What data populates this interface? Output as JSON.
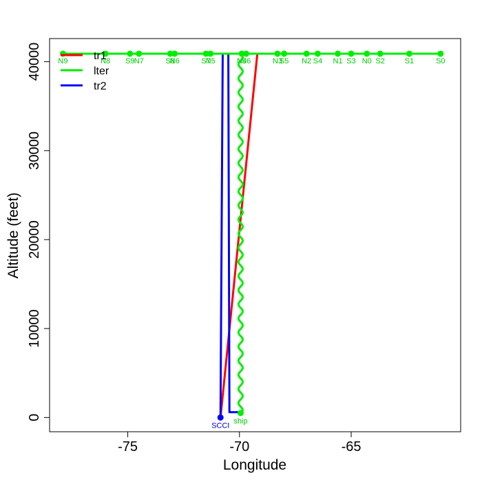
{
  "chart_data": {
    "type": "line",
    "xlabel": "Longitude",
    "ylabel": "Altitude (feet)",
    "xlim": [
      -78.5,
      -60.1
    ],
    "ylim": [
      -1600,
      42600
    ],
    "x_ticks": [
      -75,
      -70,
      -65
    ],
    "x_tick_labels": [
      "-75",
      "-70",
      "-65"
    ],
    "y_ticks": [
      0,
      10000,
      20000,
      30000,
      40000
    ],
    "y_tick_labels": [
      "0",
      "10000",
      "20000",
      "30000",
      "40000"
    ],
    "grid": false,
    "legend": {
      "position": "top-left",
      "entries": [
        "tr1",
        "lter",
        "tr2"
      ]
    },
    "series": [
      {
        "name": "tr1",
        "color": "#ff0000",
        "x": [
          -78.0,
          -77.0
        ],
        "y": [
          40900,
          40900
        ]
      },
      {
        "name": "tr1",
        "color": "#ff0000",
        "x": [
          -70.85,
          -69.2
        ],
        "y": [
          0,
          40900
        ]
      },
      {
        "name": "tr2",
        "color": "#0000ff",
        "x": [
          -70.85,
          -70.75,
          -70.5,
          -70.45,
          -70.05
        ],
        "y": [
          0,
          40900,
          40900,
          600,
          600
        ]
      },
      {
        "name": "lter",
        "color": "#00ee00",
        "x": [
          -78.0,
          -61.0
        ],
        "y": [
          40900,
          40900
        ]
      },
      {
        "name": "lter",
        "color": "#00ee00",
        "wavy": true,
        "x": [
          -69.95,
          -69.95
        ],
        "y": [
          40900,
          500
        ]
      }
    ],
    "waypoints": [
      {
        "label": "N9",
        "lon": -77.9
      },
      {
        "label": "N8",
        "lon": -76.0
      },
      {
        "label": "S9",
        "lon": -74.9
      },
      {
        "label": "N7",
        "lon": -74.5
      },
      {
        "label": "S8",
        "lon": -73.1
      },
      {
        "label": "N6",
        "lon": -72.9
      },
      {
        "label": "S7",
        "lon": -71.5
      },
      {
        "label": "N5",
        "lon": -71.3
      },
      {
        "label": "N4",
        "lon": -69.9
      },
      {
        "label": "S6",
        "lon": -69.7
      },
      {
        "label": "N3",
        "lon": -68.3
      },
      {
        "label": "S5",
        "lon": -68.0
      },
      {
        "label": "N2",
        "lon": -67.0
      },
      {
        "label": "S4",
        "lon": -66.5
      },
      {
        "label": "N1",
        "lon": -65.6
      },
      {
        "label": "S3",
        "lon": -65.0
      },
      {
        "label": "N0",
        "lon": -64.3
      },
      {
        "label": "S2",
        "lon": -63.7
      },
      {
        "label": "S1",
        "lon": -62.4
      },
      {
        "label": "S0",
        "lon": -61.0
      }
    ],
    "special_points": [
      {
        "label": "SCCI",
        "lon": -70.85,
        "alt": 0,
        "color": "#0000cc"
      },
      {
        "label": "ship",
        "lon": -69.95,
        "alt": 500,
        "color": "#00cc00"
      }
    ],
    "waypoint_altitude": 40900
  }
}
